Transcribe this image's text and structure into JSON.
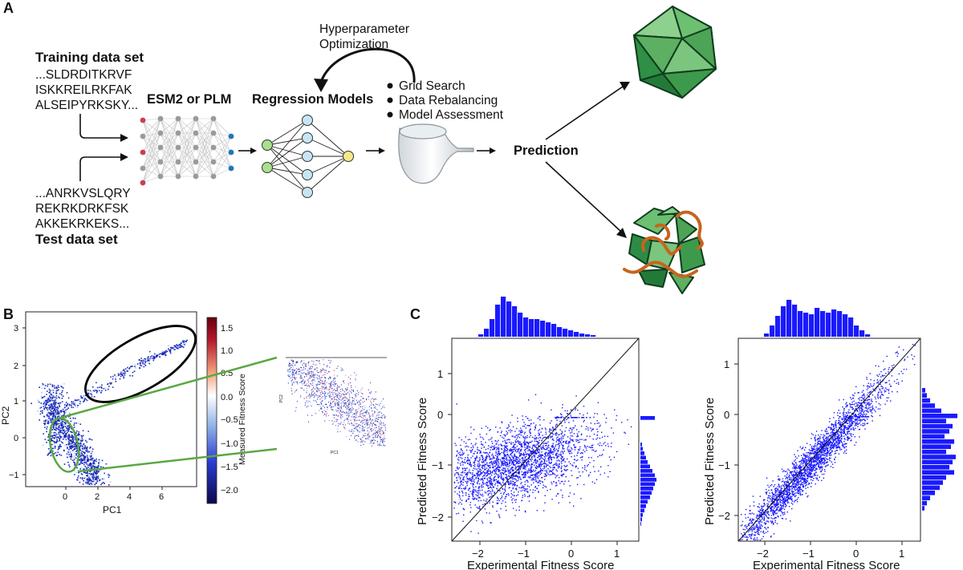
{
  "panel_a": {
    "label": "A",
    "training_title": "Training data set",
    "training_seqs": [
      "...SLDRDITKRVF",
      "ISKKREILRKFAK",
      "ALSEIPYRKSKY..."
    ],
    "test_seqs": [
      "...ANRKVSLQRY",
      "REKRKDRKFSK",
      "AKKEKRKEKS..."
    ],
    "test_title": "Test data set",
    "esm_label": "ESM2 or PLM",
    "regression_label": "Regression Models",
    "hyper_line1": "Hyperparameter",
    "hyper_line2": "Optimization",
    "bullets": [
      "Grid Search",
      "Data Rebalancing",
      "Model Assessment"
    ],
    "prediction_label": "Prediction",
    "colors": {
      "green_dark": "#1f7a3a",
      "green_light": "#6dbf72",
      "orange": "#c8641e",
      "node_red": "#cc3d55",
      "node_blue": "#1f77b4"
    }
  },
  "panel_b": {
    "label": "B",
    "xlabel": "PC1",
    "ylabel": "PC2",
    "x_ticks": [
      "0",
      "2",
      "4",
      "6"
    ],
    "y_ticks": [
      "3",
      "2",
      "1",
      "0",
      "−1"
    ],
    "colorbar_label": "Measured Fitness Score",
    "colorbar_ticks": [
      "1.5",
      "1.0",
      "0.5",
      "0.0",
      "−0.5",
      "−1.0",
      "−1.5",
      "−2.0"
    ],
    "inset_xlabel": "PC1",
    "inset_ylabel": "PC2"
  },
  "panel_c": {
    "label": "C",
    "plots": [
      {
        "xlabel": "Experimental Fitness Score",
        "ylabel": "Predicted Fitness Score",
        "x_ticks": [
          "−2",
          "−1",
          "0",
          "1"
        ],
        "y_ticks": [
          "1",
          "0",
          "−1",
          "−2"
        ]
      },
      {
        "xlabel": "Experimental Fitness Score",
        "ylabel": "Predicted Fitness Score",
        "x_ticks": [
          "−2",
          "−1",
          "0",
          "1"
        ],
        "y_ticks": [
          "1",
          "0",
          "−1",
          "−2"
        ]
      }
    ],
    "point_color": "#1a1aff"
  }
}
